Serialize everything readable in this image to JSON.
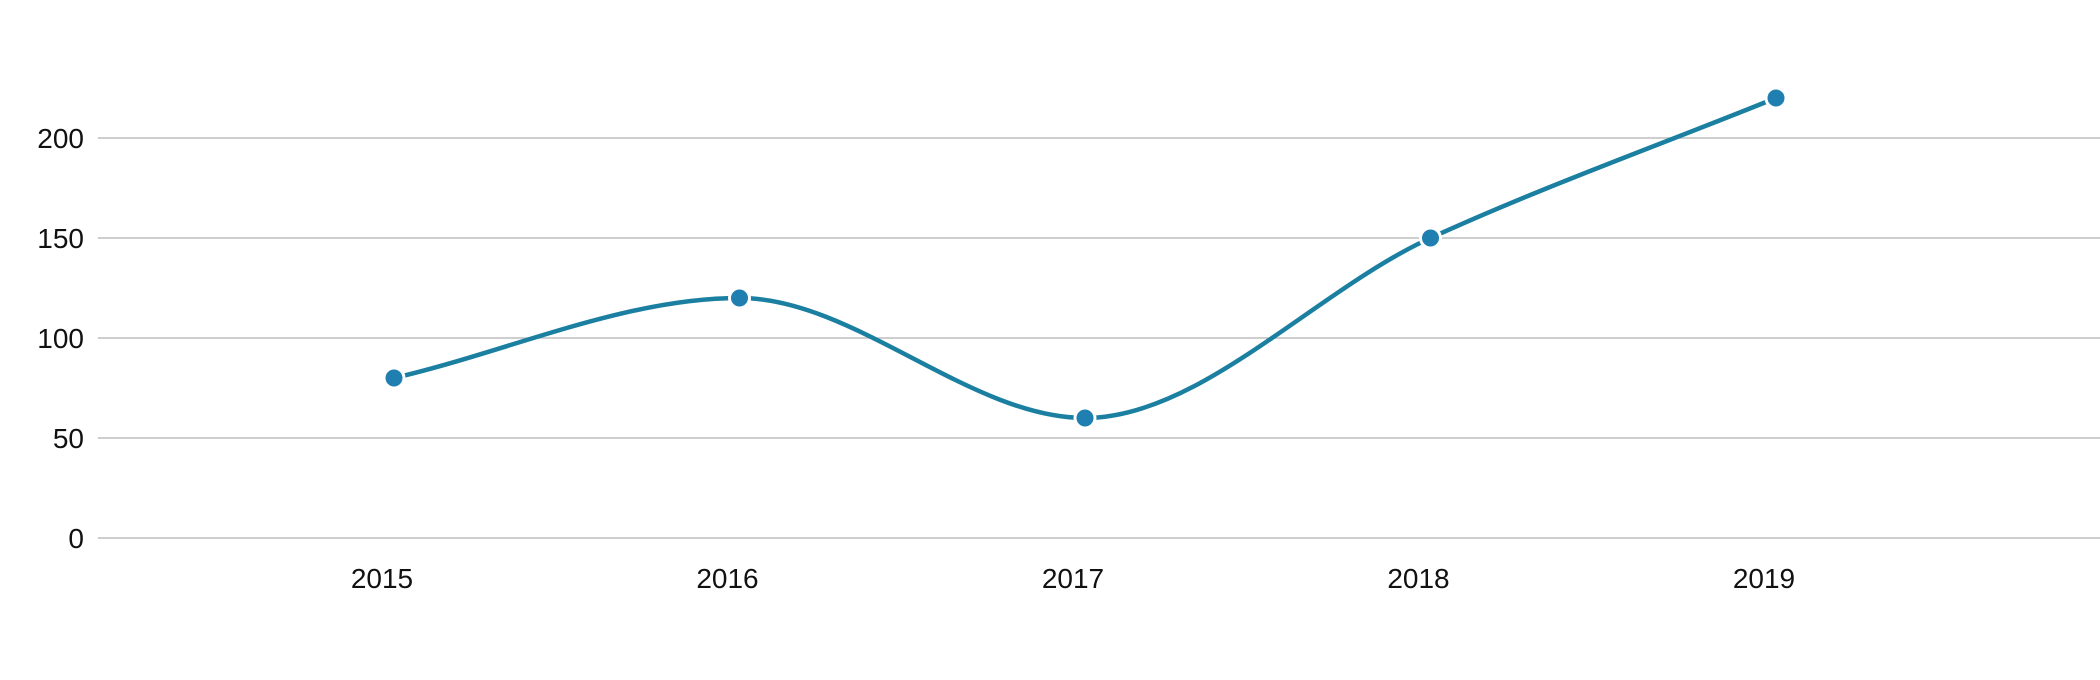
{
  "chart_data": {
    "type": "line",
    "categories": [
      "2015",
      "2016",
      "2017",
      "2018",
      "2019"
    ],
    "series": [
      {
        "values": [
          80,
          120,
          60,
          150,
          220
        ]
      }
    ],
    "ylim": [
      0,
      250
    ],
    "yticks": [
      "0",
      "50",
      "100",
      "150",
      "200"
    ],
    "grid": true,
    "legend": "none",
    "smooth": true,
    "colors": {
      "line": "#1a7fa0",
      "point": "#1f7fb0",
      "grid": "#bdbdbd"
    }
  }
}
